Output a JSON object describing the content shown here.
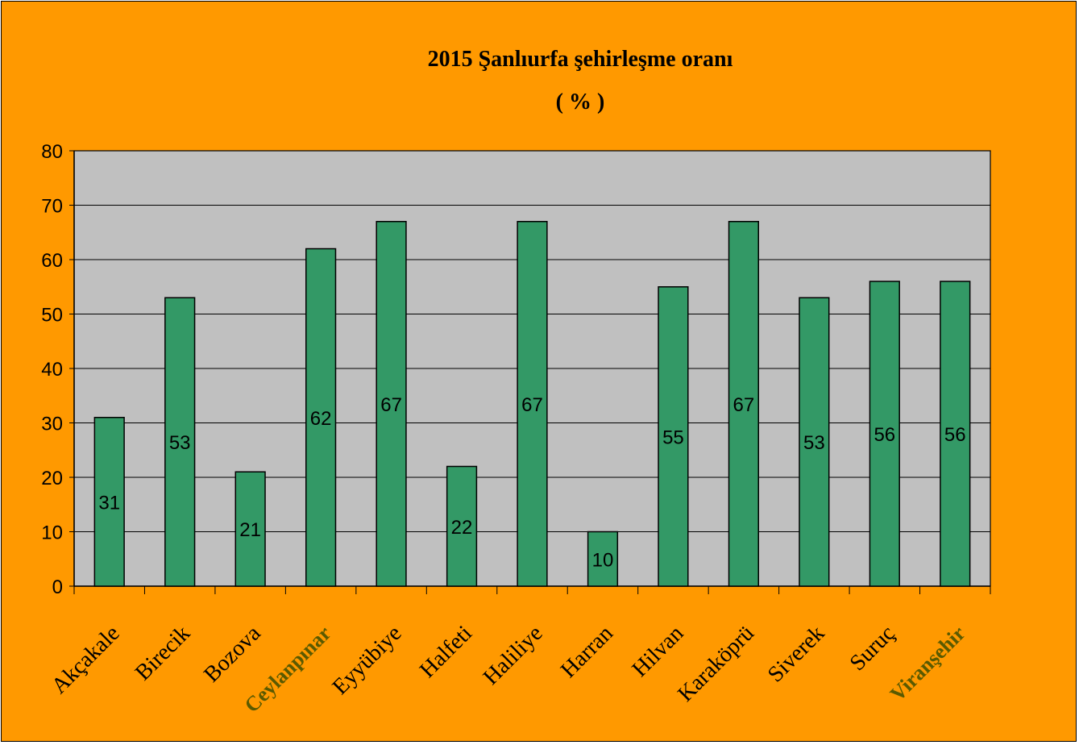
{
  "chart_data": {
    "type": "bar",
    "title": "2015 Şanlıurfa şehirleşme oranı",
    "subtitle": "( % )",
    "categories": [
      "Akçakale",
      "Birecik",
      "Bozova",
      "Ceylanpınar",
      "Eyyübiye",
      "Halfeti",
      "Haliliye",
      "Harran",
      "Hilvan",
      "Karaköprü",
      "Siverek",
      "Suruç",
      "Viranşehir"
    ],
    "emphasized_categories": [
      "Ceylanpınar",
      "Viranşehir"
    ],
    "values": [
      31,
      53,
      21,
      62,
      67,
      22,
      67,
      10,
      55,
      67,
      53,
      56,
      56
    ],
    "ylim": [
      0,
      80
    ],
    "yticks": [
      0,
      10,
      20,
      30,
      40,
      50,
      60,
      70,
      80
    ],
    "xlabel": "",
    "ylabel": "",
    "grid": true,
    "legend": "none",
    "colors": {
      "background": "#FF9900",
      "plot_area": "#C0C0C0",
      "bar": "#339966",
      "bar_edge": "#000000",
      "gridline": "#000000",
      "emphasized_label": "#5a5a00"
    }
  }
}
